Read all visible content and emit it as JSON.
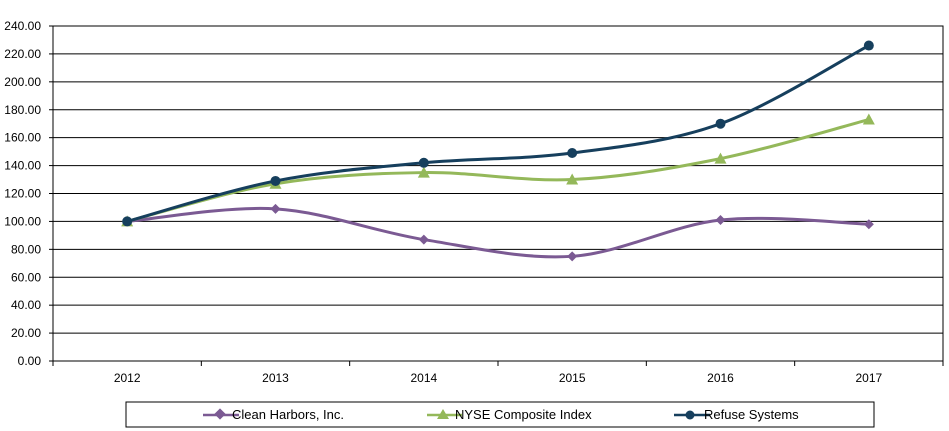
{
  "chart_data": {
    "type": "line",
    "title": "",
    "xlabel": "",
    "ylabel": "",
    "categories": [
      "2012",
      "2013",
      "2014",
      "2015",
      "2016",
      "2017"
    ],
    "ylim": [
      0,
      240
    ],
    "yticks": [
      "0.00",
      "20.00",
      "40.00",
      "60.00",
      "80.00",
      "100.00",
      "120.00",
      "140.00",
      "160.00",
      "180.00",
      "200.00",
      "220.00",
      "240.00"
    ],
    "grid": true,
    "legend_position": "bottom",
    "series": [
      {
        "name": "Clean Harbors, Inc.",
        "marker": "diamond",
        "color": "#7b5a93",
        "values": [
          100,
          109,
          87,
          75,
          101,
          98
        ]
      },
      {
        "name": "NYSE Composite Index",
        "marker": "triangle",
        "color": "#94b85a",
        "values": [
          100,
          127,
          135,
          130,
          145,
          173
        ]
      },
      {
        "name": "Refuse Systems",
        "marker": "circle",
        "color": "#163f5d",
        "values": [
          100,
          129,
          142,
          149,
          170,
          226
        ]
      }
    ]
  }
}
